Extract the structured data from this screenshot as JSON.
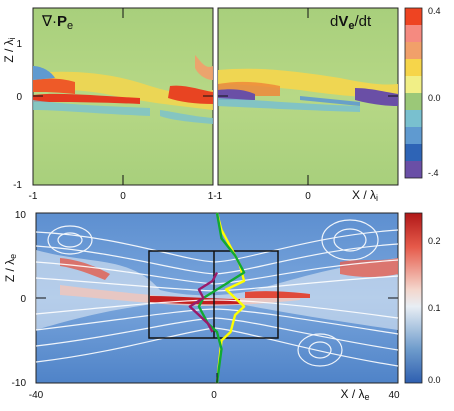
{
  "chart_data": [
    {
      "type": "heatmap",
      "panel": "top-left",
      "title": "∇·Pe",
      "x": {
        "ticks": [
          "-1",
          "0",
          "1"
        ],
        "range": [
          -1,
          1
        ],
        "unit_label": ""
      },
      "y": {
        "ticks": [
          "1",
          "0",
          "-1"
        ],
        "range": [
          -1,
          1
        ],
        "label": "Z / λi"
      },
      "grid": false
    },
    {
      "type": "heatmap",
      "panel": "top-right",
      "title": "dVe/dt",
      "x": {
        "ticks": [
          "-1",
          "0"
        ],
        "range": [
          -1,
          1
        ],
        "label": "X / λi"
      },
      "y": {
        "range": [
          -1,
          1
        ]
      },
      "colorbar": {
        "ticks": [
          "0.4",
          "0.0",
          "-.4"
        ],
        "range": [
          -0.4,
          0.4
        ],
        "colors": [
          "#ee4422",
          "#f58a80",
          "#f1a06a",
          "#f6d54a",
          "#f1ef86",
          "#9bc878",
          "#79c0cf",
          "#5f9ad0",
          "#2e64b6",
          "#6a4fa6"
        ]
      },
      "grid": false
    },
    {
      "type": "heatmap",
      "panel": "bottom",
      "x": {
        "ticks": [
          "-40",
          "0",
          "40"
        ],
        "range": [
          -40,
          40
        ],
        "label": "X / λe"
      },
      "y": {
        "ticks": [
          "10",
          "0",
          "-10"
        ],
        "range": [
          -10,
          10
        ],
        "label": "Z / λe"
      },
      "colorbar": {
        "ticks": [
          "0.2",
          "0.1",
          "0.0"
        ],
        "range": [
          0.0,
          0.25
        ]
      },
      "inset_box": {
        "x": [
          -20,
          20
        ],
        "y": [
          -5,
          5
        ]
      },
      "profiles": [
        {
          "color": "#ffff00",
          "x": [
            0,
            1,
            3,
            4,
            6,
            4,
            2,
            6,
            5,
            3,
            1,
            0
          ],
          "y": [
            -10,
            -5,
            -4,
            -2,
            -1,
            0,
            1,
            2,
            4,
            6,
            8,
            10
          ]
        },
        {
          "color": "#11aa33",
          "x": [
            0,
            1,
            0,
            -2,
            -4,
            -3,
            0,
            3,
            6,
            4,
            1,
            0
          ],
          "y": [
            -10,
            -6,
            -4,
            -3,
            -1,
            0,
            1,
            2,
            3,
            5,
            7,
            10
          ]
        },
        {
          "color": "#9a1a6a",
          "x": [
            -1,
            -2,
            -4,
            -6,
            -3,
            -4,
            -1,
            0
          ],
          "y": [
            -4,
            -3,
            -2,
            -1,
            0,
            1,
            2,
            3
          ]
        }
      ],
      "grid": false
    }
  ]
}
